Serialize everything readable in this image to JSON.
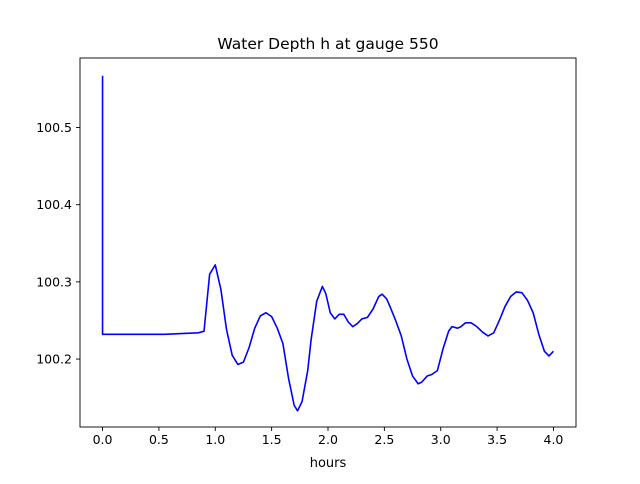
{
  "chart_data": {
    "type": "line",
    "title": "Water Depth h at gauge 550",
    "xlabel": "hours",
    "ylabel": "",
    "xlim": [
      -0.2,
      4.2
    ],
    "ylim": [
      100.112,
      100.59
    ],
    "grid": false,
    "x_ticks": [
      0.0,
      0.5,
      1.0,
      1.5,
      2.0,
      2.5,
      3.0,
      3.5,
      4.0
    ],
    "x_tick_labels": [
      "0.0",
      "0.5",
      "1.0",
      "1.5",
      "2.0",
      "2.5",
      "3.0",
      "3.5",
      "4.0"
    ],
    "y_ticks": [
      100.2,
      100.3,
      100.4,
      100.5
    ],
    "y_tick_labels": [
      "100.2",
      "100.3",
      "100.4",
      "100.5"
    ],
    "series": [
      {
        "color": "#0000ff",
        "points": [
          [
            0.0,
            100.567
          ],
          [
            0.0,
            100.232
          ],
          [
            0.1,
            100.232
          ],
          [
            0.3,
            100.232
          ],
          [
            0.55,
            100.232
          ],
          [
            0.7,
            100.233
          ],
          [
            0.85,
            100.234
          ],
          [
            0.9,
            100.236
          ],
          [
            0.95,
            100.31
          ],
          [
            1.0,
            100.322
          ],
          [
            1.05,
            100.29
          ],
          [
            1.1,
            100.238
          ],
          [
            1.15,
            100.205
          ],
          [
            1.2,
            100.193
          ],
          [
            1.25,
            100.196
          ],
          [
            1.3,
            100.215
          ],
          [
            1.35,
            100.24
          ],
          [
            1.4,
            100.256
          ],
          [
            1.45,
            100.26
          ],
          [
            1.5,
            100.255
          ],
          [
            1.55,
            100.24
          ],
          [
            1.6,
            100.22
          ],
          [
            1.65,
            100.175
          ],
          [
            1.7,
            100.14
          ],
          [
            1.73,
            100.133
          ],
          [
            1.77,
            100.145
          ],
          [
            1.82,
            100.185
          ],
          [
            1.85,
            100.225
          ],
          [
            1.9,
            100.275
          ],
          [
            1.95,
            100.294
          ],
          [
            1.98,
            100.285
          ],
          [
            2.02,
            100.26
          ],
          [
            2.06,
            100.252
          ],
          [
            2.1,
            100.258
          ],
          [
            2.14,
            100.258
          ],
          [
            2.18,
            100.248
          ],
          [
            2.22,
            100.242
          ],
          [
            2.26,
            100.246
          ],
          [
            2.3,
            100.252
          ],
          [
            2.35,
            100.254
          ],
          [
            2.4,
            100.265
          ],
          [
            2.45,
            100.281
          ],
          [
            2.48,
            100.284
          ],
          [
            2.52,
            100.278
          ],
          [
            2.55,
            100.268
          ],
          [
            2.6,
            100.25
          ],
          [
            2.65,
            100.23
          ],
          [
            2.7,
            100.2
          ],
          [
            2.75,
            100.178
          ],
          [
            2.8,
            100.168
          ],
          [
            2.83,
            100.17
          ],
          [
            2.88,
            100.178
          ],
          [
            2.92,
            100.18
          ],
          [
            2.97,
            100.185
          ],
          [
            3.02,
            100.213
          ],
          [
            3.07,
            100.236
          ],
          [
            3.1,
            100.242
          ],
          [
            3.15,
            100.24
          ],
          [
            3.18,
            100.242
          ],
          [
            3.22,
            100.247
          ],
          [
            3.27,
            100.247
          ],
          [
            3.32,
            100.242
          ],
          [
            3.37,
            100.235
          ],
          [
            3.42,
            100.23
          ],
          [
            3.47,
            100.234
          ],
          [
            3.52,
            100.25
          ],
          [
            3.57,
            100.268
          ],
          [
            3.62,
            100.281
          ],
          [
            3.67,
            100.287
          ],
          [
            3.72,
            100.286
          ],
          [
            3.77,
            100.276
          ],
          [
            3.82,
            100.26
          ],
          [
            3.87,
            100.232
          ],
          [
            3.92,
            100.21
          ],
          [
            3.96,
            100.204
          ],
          [
            4.0,
            100.21
          ]
        ]
      }
    ]
  }
}
